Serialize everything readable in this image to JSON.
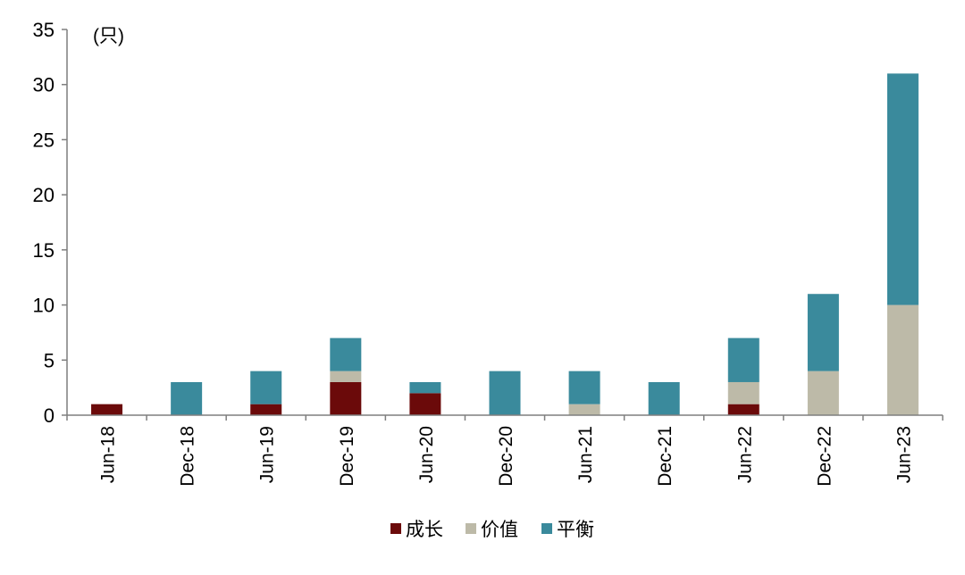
{
  "chart_data": {
    "type": "bar",
    "stacked": true,
    "unit_label": "(只)",
    "categories": [
      "Jun-18",
      "Dec-18",
      "Jun-19",
      "Dec-19",
      "Jun-20",
      "Dec-20",
      "Jun-21",
      "Dec-21",
      "Jun-22",
      "Dec-22",
      "Jun-23"
    ],
    "series": [
      {
        "name": "成长",
        "color": "#6b0a0a",
        "values": [
          1,
          0,
          1,
          3,
          2,
          0,
          0,
          0,
          1,
          0,
          0
        ]
      },
      {
        "name": "价值",
        "color": "#bdbaa8",
        "values": [
          0,
          0,
          0,
          1,
          0,
          0,
          1,
          0,
          2,
          4,
          10
        ]
      },
      {
        "name": "平衡",
        "color": "#3a8a9c",
        "values": [
          0,
          3,
          3,
          3,
          1,
          4,
          3,
          3,
          4,
          7,
          21
        ]
      }
    ],
    "y_ticks": [
      "0",
      "5",
      "10",
      "15",
      "20",
      "25",
      "30",
      "35"
    ],
    "ylim": [
      0,
      35
    ],
    "grid": false,
    "legend_position": "bottom"
  }
}
